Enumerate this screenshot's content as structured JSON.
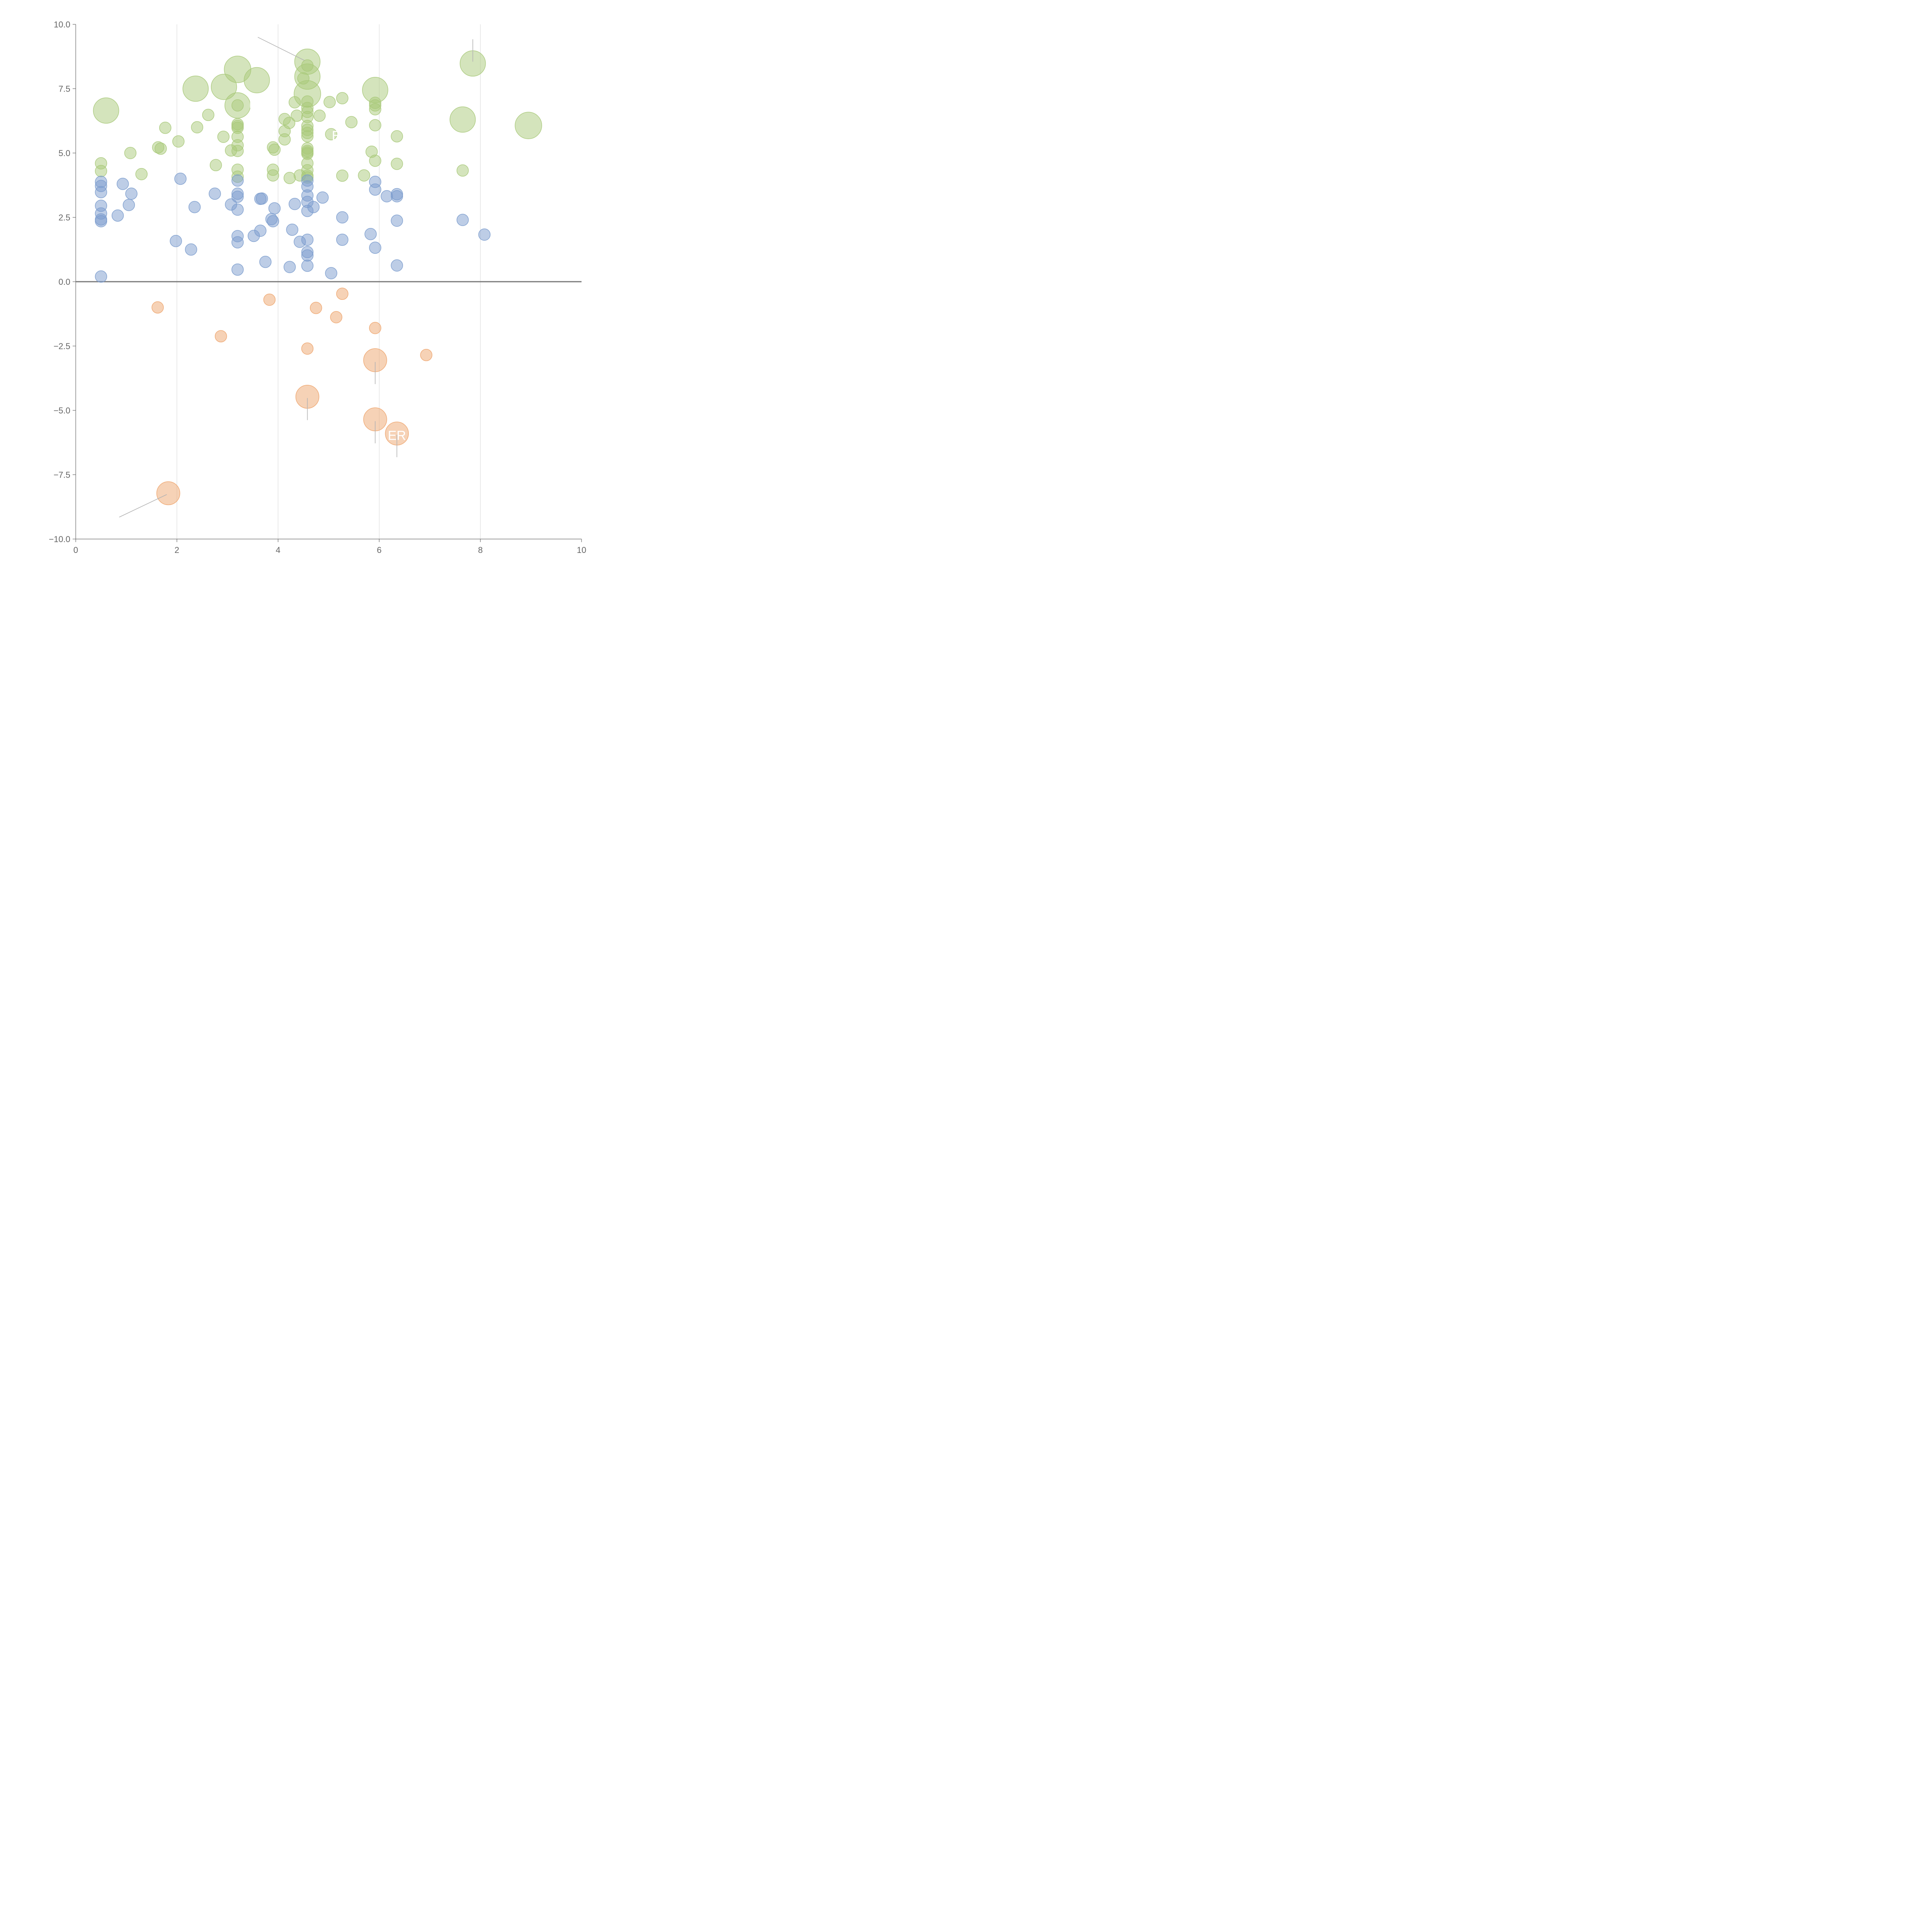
{
  "colors": {
    "positive_low": "#7b9ccd",
    "positive_high": "#a9c97a",
    "negative": "#eea56e",
    "axis": "#666666",
    "zero_line": "#777777",
    "grid": "#d6d6d6",
    "leader": "#b3b3b3"
  },
  "chart_data": {
    "type": "scatter",
    "title": "",
    "xlabel": "",
    "ylabel": "",
    "xlim": [
      0,
      10
    ],
    "ylim": [
      -10,
      10
    ],
    "grid": "vertical",
    "x_ticks": [
      0,
      2,
      4,
      6,
      8,
      10
    ],
    "y_ticks": [
      -10,
      -7.5,
      -5,
      -2.5,
      0,
      2.5,
      5,
      7.5,
      10
    ],
    "x_tick_labels": [
      "0",
      "2",
      "4",
      "6",
      "8",
      "10"
    ],
    "y_tick_labels": [
      "−10.0",
      "−7.5",
      "−5.0",
      "−2.5",
      "0.0",
      "2.5",
      "5.0",
      "7.5",
      "10.0"
    ],
    "size_unit": "relative",
    "series": [
      {
        "color": "#a9c97a",
        "points": [
          {
            "x": 0.6,
            "y": 6.65,
            "s": 2.2
          },
          {
            "x": 2.37,
            "y": 7.5,
            "s": 2.2
          },
          {
            "x": 2.93,
            "y": 7.57,
            "s": 2.2
          },
          {
            "x": 3.2,
            "y": 8.25,
            "s": 2.3
          },
          {
            "x": 3.58,
            "y": 7.83,
            "s": 2.2
          },
          {
            "x": 3.2,
            "y": 6.85,
            "s": 2.2
          },
          {
            "x": 4.58,
            "y": 8.55,
            "s": 2.2
          },
          {
            "x": 4.58,
            "y": 7.97,
            "s": 2.2
          },
          {
            "x": 4.58,
            "y": 7.3,
            "s": 2.3
          },
          {
            "x": 5.92,
            "y": 7.45,
            "s": 2.2
          },
          {
            "x": 7.85,
            "y": 8.48,
            "s": 2.2
          },
          {
            "x": 7.65,
            "y": 6.3,
            "s": 2.2
          },
          {
            "x": 8.95,
            "y": 6.07,
            "s": 2.3
          },
          {
            "x": 0.5,
            "y": 4.6,
            "s": 1
          },
          {
            "x": 0.5,
            "y": 4.3,
            "s": 1
          },
          {
            "x": 1.08,
            "y": 5.0,
            "s": 1
          },
          {
            "x": 1.3,
            "y": 4.18,
            "s": 1
          },
          {
            "x": 1.63,
            "y": 5.22,
            "s": 1
          },
          {
            "x": 1.68,
            "y": 5.17,
            "s": 1
          },
          {
            "x": 1.77,
            "y": 5.98,
            "s": 1
          },
          {
            "x": 2.03,
            "y": 5.45,
            "s": 1
          },
          {
            "x": 2.4,
            "y": 6.0,
            "s": 1
          },
          {
            "x": 2.62,
            "y": 6.48,
            "s": 1
          },
          {
            "x": 2.77,
            "y": 4.53,
            "s": 1
          },
          {
            "x": 2.92,
            "y": 5.63,
            "s": 1
          },
          {
            "x": 3.07,
            "y": 5.1,
            "s": 1
          },
          {
            "x": 3.2,
            "y": 6.12,
            "s": 1
          },
          {
            "x": 3.2,
            "y": 6.05,
            "s": 1
          },
          {
            "x": 3.2,
            "y": 5.98,
            "s": 1
          },
          {
            "x": 3.2,
            "y": 5.63,
            "s": 1
          },
          {
            "x": 3.2,
            "y": 5.3,
            "s": 1
          },
          {
            "x": 3.2,
            "y": 5.08,
            "s": 1
          },
          {
            "x": 3.2,
            "y": 4.35,
            "s": 1
          },
          {
            "x": 3.2,
            "y": 4.08,
            "s": 1
          },
          {
            "x": 3.2,
            "y": 6.85,
            "s": 1
          },
          {
            "x": 3.9,
            "y": 5.22,
            "s": 1
          },
          {
            "x": 3.93,
            "y": 5.13,
            "s": 1
          },
          {
            "x": 3.9,
            "y": 4.35,
            "s": 1
          },
          {
            "x": 3.9,
            "y": 4.13,
            "s": 1
          },
          {
            "x": 4.13,
            "y": 6.32,
            "s": 1
          },
          {
            "x": 4.13,
            "y": 5.85,
            "s": 1
          },
          {
            "x": 4.13,
            "y": 5.53,
            "s": 1
          },
          {
            "x": 4.22,
            "y": 6.17,
            "s": 1
          },
          {
            "x": 4.23,
            "y": 4.03,
            "s": 1
          },
          {
            "x": 4.33,
            "y": 6.97,
            "s": 1
          },
          {
            "x": 4.37,
            "y": 6.45,
            "s": 1
          },
          {
            "x": 4.43,
            "y": 4.13,
            "s": 1
          },
          {
            "x": 4.58,
            "y": 7.0,
            "s": 1
          },
          {
            "x": 4.58,
            "y": 6.75,
            "s": 1
          },
          {
            "x": 4.58,
            "y": 6.6,
            "s": 1
          },
          {
            "x": 4.58,
            "y": 6.4,
            "s": 1
          },
          {
            "x": 4.58,
            "y": 6.05,
            "s": 1
          },
          {
            "x": 4.58,
            "y": 5.9,
            "s": 1
          },
          {
            "x": 4.58,
            "y": 5.78,
            "s": 1
          },
          {
            "x": 4.58,
            "y": 5.65,
            "s": 1
          },
          {
            "x": 4.58,
            "y": 5.18,
            "s": 1
          },
          {
            "x": 4.58,
            "y": 5.08,
            "s": 1
          },
          {
            "x": 4.58,
            "y": 5.02,
            "s": 1
          },
          {
            "x": 4.58,
            "y": 4.97,
            "s": 1
          },
          {
            "x": 4.58,
            "y": 4.6,
            "s": 1
          },
          {
            "x": 4.58,
            "y": 4.33,
            "s": 1
          },
          {
            "x": 4.58,
            "y": 4.12,
            "s": 1
          },
          {
            "x": 4.58,
            "y": 4.05,
            "s": 1
          },
          {
            "x": 4.5,
            "y": 7.9,
            "s": 1
          },
          {
            "x": 4.58,
            "y": 8.4,
            "s": 1
          },
          {
            "x": 4.82,
            "y": 6.45,
            "s": 1
          },
          {
            "x": 5.05,
            "y": 5.73,
            "s": 1
          },
          {
            "x": 5.02,
            "y": 6.98,
            "s": 1
          },
          {
            "x": 5.27,
            "y": 7.13,
            "s": 1
          },
          {
            "x": 5.27,
            "y": 4.12,
            "s": 1
          },
          {
            "x": 5.45,
            "y": 6.2,
            "s": 1
          },
          {
            "x": 5.7,
            "y": 4.13,
            "s": 1
          },
          {
            "x": 5.85,
            "y": 5.05,
            "s": 1
          },
          {
            "x": 5.92,
            "y": 6.95,
            "s": 1
          },
          {
            "x": 5.92,
            "y": 6.85,
            "s": 1
          },
          {
            "x": 5.92,
            "y": 6.7,
            "s": 1
          },
          {
            "x": 5.92,
            "y": 6.08,
            "s": 1
          },
          {
            "x": 5.92,
            "y": 4.7,
            "s": 1
          },
          {
            "x": 6.35,
            "y": 5.65,
            "s": 1
          },
          {
            "x": 6.35,
            "y": 4.58,
            "s": 1
          },
          {
            "x": 7.65,
            "y": 4.32,
            "s": 1
          }
        ]
      },
      {
        "color": "#7b9ccd",
        "points": [
          {
            "x": 0.5,
            "y": 3.88,
            "s": 1
          },
          {
            "x": 0.5,
            "y": 3.72,
            "s": 1
          },
          {
            "x": 0.5,
            "y": 3.48,
            "s": 1
          },
          {
            "x": 0.5,
            "y": 2.95,
            "s": 1
          },
          {
            "x": 0.5,
            "y": 2.65,
            "s": 1
          },
          {
            "x": 0.5,
            "y": 2.42,
            "s": 1
          },
          {
            "x": 0.5,
            "y": 2.35,
            "s": 1
          },
          {
            "x": 0.5,
            "y": 0.2,
            "s": 1
          },
          {
            "x": 0.83,
            "y": 2.57,
            "s": 1
          },
          {
            "x": 0.93,
            "y": 3.8,
            "s": 1
          },
          {
            "x": 1.05,
            "y": 2.98,
            "s": 1
          },
          {
            "x": 1.1,
            "y": 3.42,
            "s": 1
          },
          {
            "x": 1.98,
            "y": 1.58,
            "s": 1
          },
          {
            "x": 2.07,
            "y": 4.0,
            "s": 1
          },
          {
            "x": 2.28,
            "y": 1.25,
            "s": 1
          },
          {
            "x": 2.35,
            "y": 2.9,
            "s": 1
          },
          {
            "x": 2.75,
            "y": 3.42,
            "s": 1
          },
          {
            "x": 3.07,
            "y": 3.0,
            "s": 1
          },
          {
            "x": 3.2,
            "y": 3.93,
            "s": 1
          },
          {
            "x": 3.2,
            "y": 3.42,
            "s": 1
          },
          {
            "x": 3.2,
            "y": 3.3,
            "s": 1
          },
          {
            "x": 3.2,
            "y": 2.8,
            "s": 1
          },
          {
            "x": 3.2,
            "y": 1.77,
            "s": 1
          },
          {
            "x": 3.2,
            "y": 1.53,
            "s": 1
          },
          {
            "x": 3.2,
            "y": 0.47,
            "s": 1
          },
          {
            "x": 3.52,
            "y": 1.78,
            "s": 1
          },
          {
            "x": 3.65,
            "y": 1.98,
            "s": 1
          },
          {
            "x": 3.65,
            "y": 3.22,
            "s": 1
          },
          {
            "x": 3.68,
            "y": 3.23,
            "s": 1
          },
          {
            "x": 3.75,
            "y": 0.77,
            "s": 1
          },
          {
            "x": 3.87,
            "y": 2.43,
            "s": 1
          },
          {
            "x": 3.9,
            "y": 2.35,
            "s": 1
          },
          {
            "x": 3.93,
            "y": 2.85,
            "s": 1
          },
          {
            "x": 4.23,
            "y": 0.57,
            "s": 1
          },
          {
            "x": 4.28,
            "y": 2.02,
            "s": 1
          },
          {
            "x": 4.33,
            "y": 3.02,
            "s": 1
          },
          {
            "x": 4.43,
            "y": 1.55,
            "s": 1
          },
          {
            "x": 4.58,
            "y": 3.93,
            "s": 1
          },
          {
            "x": 4.58,
            "y": 3.7,
            "s": 1
          },
          {
            "x": 4.58,
            "y": 3.35,
            "s": 1
          },
          {
            "x": 4.58,
            "y": 3.1,
            "s": 1
          },
          {
            "x": 4.58,
            "y": 2.75,
            "s": 1
          },
          {
            "x": 4.58,
            "y": 1.63,
            "s": 1
          },
          {
            "x": 4.58,
            "y": 1.15,
            "s": 1
          },
          {
            "x": 4.58,
            "y": 1.02,
            "s": 1
          },
          {
            "x": 4.58,
            "y": 0.62,
            "s": 1
          },
          {
            "x": 4.7,
            "y": 2.9,
            "s": 1
          },
          {
            "x": 4.88,
            "y": 3.27,
            "s": 1
          },
          {
            "x": 5.05,
            "y": 0.33,
            "s": 1
          },
          {
            "x": 5.27,
            "y": 2.5,
            "s": 1
          },
          {
            "x": 5.27,
            "y": 1.63,
            "s": 1
          },
          {
            "x": 5.83,
            "y": 1.85,
            "s": 1
          },
          {
            "x": 5.92,
            "y": 3.88,
            "s": 1
          },
          {
            "x": 5.92,
            "y": 3.58,
            "s": 1
          },
          {
            "x": 5.92,
            "y": 1.32,
            "s": 1
          },
          {
            "x": 6.15,
            "y": 3.32,
            "s": 1
          },
          {
            "x": 6.35,
            "y": 3.4,
            "s": 1
          },
          {
            "x": 6.35,
            "y": 3.32,
            "s": 1
          },
          {
            "x": 6.35,
            "y": 2.37,
            "s": 1
          },
          {
            "x": 6.35,
            "y": 0.63,
            "s": 1
          },
          {
            "x": 7.65,
            "y": 2.4,
            "s": 1
          },
          {
            "x": 8.08,
            "y": 1.83,
            "s": 1
          }
        ]
      },
      {
        "color": "#eea56e",
        "points": [
          {
            "x": 1.62,
            "y": -1.0,
            "s": 1
          },
          {
            "x": 2.87,
            "y": -2.12,
            "s": 1
          },
          {
            "x": 3.83,
            "y": -0.7,
            "s": 1
          },
          {
            "x": 4.58,
            "y": -2.6,
            "s": 1
          },
          {
            "x": 4.75,
            "y": -1.02,
            "s": 1
          },
          {
            "x": 5.15,
            "y": -1.38,
            "s": 1
          },
          {
            "x": 5.27,
            "y": -0.47,
            "s": 1
          },
          {
            "x": 5.92,
            "y": -1.8,
            "s": 1
          },
          {
            "x": 6.93,
            "y": -2.85,
            "s": 1
          },
          {
            "x": 5.92,
            "y": -3.05,
            "s": 2
          },
          {
            "x": 4.58,
            "y": -4.47,
            "s": 2
          },
          {
            "x": 5.92,
            "y": -5.35,
            "s": 2
          },
          {
            "x": 6.35,
            "y": -5.9,
            "s": 2
          },
          {
            "x": 1.83,
            "y": -8.22,
            "s": 2
          }
        ]
      }
    ],
    "annotations": [
      {
        "text": "E",
        "x": 5.15,
        "y": 5.5
      },
      {
        "text": "H",
        "x": 3.52,
        "y": 6.75
      },
      {
        "text": "ER",
        "x": 6.35,
        "y": -6.15
      }
    ],
    "leader_lines": [
      {
        "from": [
          3.6,
          9.5
        ],
        "to": [
          4.52,
          8.6
        ]
      },
      {
        "from": [
          7.85,
          9.42
        ],
        "to": [
          7.85,
          8.55
        ]
      },
      {
        "from": [
          5.92,
          -3.12
        ],
        "to": [
          5.92,
          -3.98
        ]
      },
      {
        "from": [
          4.58,
          -4.52
        ],
        "to": [
          4.58,
          -5.38
        ]
      },
      {
        "from": [
          5.92,
          -5.42
        ],
        "to": [
          5.92,
          -6.28
        ]
      },
      {
        "from": [
          6.35,
          -5.95
        ],
        "to": [
          6.35,
          -6.82
        ]
      },
      {
        "from": [
          1.8,
          -8.27
        ],
        "to": [
          0.86,
          -9.15
        ]
      }
    ]
  }
}
